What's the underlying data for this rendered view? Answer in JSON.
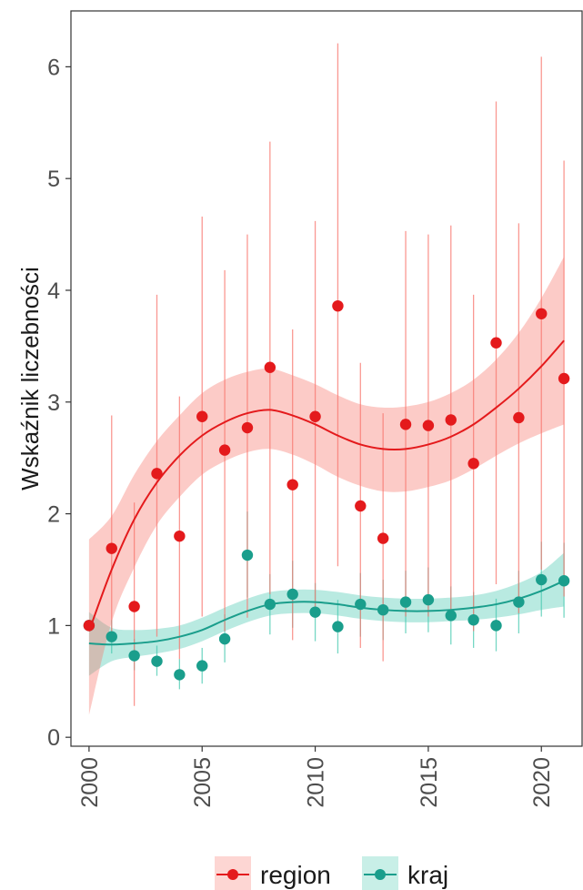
{
  "chart_data": {
    "type": "scatter",
    "title": "",
    "xlabel": "",
    "ylabel": "Wskaźnik liczebności",
    "xlim": [
      1999.2,
      2021.8
    ],
    "ylim": [
      -0.08,
      6.5
    ],
    "x_ticks": [
      2000,
      2005,
      2010,
      2015,
      2020
    ],
    "y_ticks": [
      0,
      1,
      2,
      3,
      4,
      5,
      6
    ],
    "grid": false,
    "legend_position": "bottom",
    "series": [
      {
        "name": "region",
        "color": "#e41a1c",
        "band_color": "#f8766d",
        "points": [
          {
            "x": 2000,
            "y": 1.0,
            "lo": 1.0,
            "hi": 1.0
          },
          {
            "x": 2001,
            "y": 1.69,
            "lo": 0.9,
            "hi": 2.88
          },
          {
            "x": 2002,
            "y": 1.17,
            "lo": 0.28,
            "hi": 2.1
          },
          {
            "x": 2003,
            "y": 2.36,
            "lo": 0.9,
            "hi": 3.96
          },
          {
            "x": 2004,
            "y": 1.8,
            "lo": 0.7,
            "hi": 3.05
          },
          {
            "x": 2005,
            "y": 2.87,
            "lo": 1.08,
            "hi": 4.66
          },
          {
            "x": 2006,
            "y": 2.57,
            "lo": 0.95,
            "hi": 4.18
          },
          {
            "x": 2007,
            "y": 2.77,
            "lo": 1.07,
            "hi": 4.5
          },
          {
            "x": 2008,
            "y": 3.31,
            "lo": 1.28,
            "hi": 5.33
          },
          {
            "x": 2009,
            "y": 2.26,
            "lo": 0.87,
            "hi": 3.65
          },
          {
            "x": 2010,
            "y": 2.87,
            "lo": 1.13,
            "hi": 4.62
          },
          {
            "x": 2011,
            "y": 3.86,
            "lo": 1.53,
            "hi": 6.21
          },
          {
            "x": 2012,
            "y": 2.07,
            "lo": 0.8,
            "hi": 3.35
          },
          {
            "x": 2013,
            "y": 1.78,
            "lo": 0.68,
            "hi": 2.9
          },
          {
            "x": 2014,
            "y": 2.8,
            "lo": 1.08,
            "hi": 4.53
          },
          {
            "x": 2015,
            "y": 2.79,
            "lo": 1.08,
            "hi": 4.5
          },
          {
            "x": 2016,
            "y": 2.84,
            "lo": 1.1,
            "hi": 4.58
          },
          {
            "x": 2017,
            "y": 2.45,
            "lo": 0.95,
            "hi": 3.96
          },
          {
            "x": 2018,
            "y": 3.53,
            "lo": 1.37,
            "hi": 5.69
          },
          {
            "x": 2019,
            "y": 2.86,
            "lo": 1.11,
            "hi": 4.6
          },
          {
            "x": 2020,
            "y": 3.79,
            "lo": 1.5,
            "hi": 6.09
          },
          {
            "x": 2021,
            "y": 3.21,
            "lo": 1.26,
            "hi": 5.16
          }
        ],
        "trend": [
          {
            "x": 2000,
            "y": 0.95,
            "lo": 0.2,
            "hi": 1.77
          },
          {
            "x": 2001,
            "y": 1.5,
            "lo": 1.03,
            "hi": 1.98
          },
          {
            "x": 2002,
            "y": 1.95,
            "lo": 1.52,
            "hi": 2.35
          },
          {
            "x": 2003,
            "y": 2.28,
            "lo": 1.9,
            "hi": 2.65
          },
          {
            "x": 2004,
            "y": 2.52,
            "lo": 2.15,
            "hi": 2.88
          },
          {
            "x": 2005,
            "y": 2.7,
            "lo": 2.35,
            "hi": 3.08
          },
          {
            "x": 2006,
            "y": 2.82,
            "lo": 2.47,
            "hi": 3.2
          },
          {
            "x": 2007,
            "y": 2.9,
            "lo": 2.55,
            "hi": 3.27
          },
          {
            "x": 2008,
            "y": 2.93,
            "lo": 2.58,
            "hi": 3.3
          },
          {
            "x": 2009,
            "y": 2.88,
            "lo": 2.53,
            "hi": 3.24
          },
          {
            "x": 2010,
            "y": 2.8,
            "lo": 2.44,
            "hi": 3.16
          },
          {
            "x": 2011,
            "y": 2.7,
            "lo": 2.33,
            "hi": 3.06
          },
          {
            "x": 2012,
            "y": 2.62,
            "lo": 2.25,
            "hi": 2.98
          },
          {
            "x": 2013,
            "y": 2.58,
            "lo": 2.2,
            "hi": 2.95
          },
          {
            "x": 2014,
            "y": 2.58,
            "lo": 2.2,
            "hi": 2.96
          },
          {
            "x": 2015,
            "y": 2.62,
            "lo": 2.24,
            "hi": 3.0
          },
          {
            "x": 2016,
            "y": 2.69,
            "lo": 2.3,
            "hi": 3.08
          },
          {
            "x": 2017,
            "y": 2.8,
            "lo": 2.4,
            "hi": 3.2
          },
          {
            "x": 2018,
            "y": 2.95,
            "lo": 2.52,
            "hi": 3.38
          },
          {
            "x": 2019,
            "y": 3.12,
            "lo": 2.63,
            "hi": 3.62
          },
          {
            "x": 2020,
            "y": 3.32,
            "lo": 2.72,
            "hi": 3.93
          },
          {
            "x": 2021,
            "y": 3.55,
            "lo": 2.8,
            "hi": 4.3
          }
        ]
      },
      {
        "name": "kraj",
        "color": "#1a9e8c",
        "band_color": "#48c9b0",
        "points": [
          {
            "x": 2000,
            "y": 1.0,
            "lo": 1.0,
            "hi": 1.0
          },
          {
            "x": 2001,
            "y": 0.9,
            "lo": 0.75,
            "hi": 1.05
          },
          {
            "x": 2002,
            "y": 0.73,
            "lo": 0.6,
            "hi": 0.88
          },
          {
            "x": 2003,
            "y": 0.68,
            "lo": 0.55,
            "hi": 0.82
          },
          {
            "x": 2004,
            "y": 0.56,
            "lo": 0.43,
            "hi": 0.7
          },
          {
            "x": 2005,
            "y": 0.64,
            "lo": 0.48,
            "hi": 0.8
          },
          {
            "x": 2006,
            "y": 0.88,
            "lo": 0.67,
            "hi": 1.1
          },
          {
            "x": 2007,
            "y": 1.63,
            "lo": 1.25,
            "hi": 2.02
          },
          {
            "x": 2008,
            "y": 1.19,
            "lo": 0.92,
            "hi": 1.46
          },
          {
            "x": 2009,
            "y": 1.28,
            "lo": 0.98,
            "hi": 1.58
          },
          {
            "x": 2010,
            "y": 1.12,
            "lo": 0.86,
            "hi": 1.38
          },
          {
            "x": 2011,
            "y": 0.99,
            "lo": 0.75,
            "hi": 1.23
          },
          {
            "x": 2012,
            "y": 1.19,
            "lo": 0.9,
            "hi": 1.47
          },
          {
            "x": 2013,
            "y": 1.14,
            "lo": 0.87,
            "hi": 1.41
          },
          {
            "x": 2014,
            "y": 1.21,
            "lo": 0.93,
            "hi": 1.49
          },
          {
            "x": 2015,
            "y": 1.23,
            "lo": 0.94,
            "hi": 1.52
          },
          {
            "x": 2016,
            "y": 1.09,
            "lo": 0.83,
            "hi": 1.35
          },
          {
            "x": 2017,
            "y": 1.05,
            "lo": 0.8,
            "hi": 1.3
          },
          {
            "x": 2018,
            "y": 1.0,
            "lo": 0.77,
            "hi": 1.24
          },
          {
            "x": 2019,
            "y": 1.21,
            "lo": 0.93,
            "hi": 1.49
          },
          {
            "x": 2020,
            "y": 1.41,
            "lo": 1.08,
            "hi": 1.75
          },
          {
            "x": 2021,
            "y": 1.4,
            "lo": 1.07,
            "hi": 1.74
          }
        ],
        "trend": [
          {
            "x": 2000,
            "y": 0.84,
            "lo": 0.55,
            "hi": 1.12
          },
          {
            "x": 2001,
            "y": 0.83,
            "lo": 0.68,
            "hi": 0.98
          },
          {
            "x": 2002,
            "y": 0.84,
            "lo": 0.72,
            "hi": 0.96
          },
          {
            "x": 2003,
            "y": 0.86,
            "lo": 0.75,
            "hi": 0.97
          },
          {
            "x": 2004,
            "y": 0.9,
            "lo": 0.79,
            "hi": 1.0
          },
          {
            "x": 2005,
            "y": 0.96,
            "lo": 0.86,
            "hi": 1.07
          },
          {
            "x": 2006,
            "y": 1.05,
            "lo": 0.95,
            "hi": 1.16
          },
          {
            "x": 2007,
            "y": 1.13,
            "lo": 1.03,
            "hi": 1.24
          },
          {
            "x": 2008,
            "y": 1.19,
            "lo": 1.09,
            "hi": 1.3
          },
          {
            "x": 2009,
            "y": 1.21,
            "lo": 1.11,
            "hi": 1.32
          },
          {
            "x": 2010,
            "y": 1.21,
            "lo": 1.11,
            "hi": 1.32
          },
          {
            "x": 2011,
            "y": 1.19,
            "lo": 1.09,
            "hi": 1.3
          },
          {
            "x": 2012,
            "y": 1.16,
            "lo": 1.06,
            "hi": 1.27
          },
          {
            "x": 2013,
            "y": 1.14,
            "lo": 1.04,
            "hi": 1.25
          },
          {
            "x": 2014,
            "y": 1.13,
            "lo": 1.03,
            "hi": 1.24
          },
          {
            "x": 2015,
            "y": 1.13,
            "lo": 1.03,
            "hi": 1.24
          },
          {
            "x": 2016,
            "y": 1.14,
            "lo": 1.04,
            "hi": 1.25
          },
          {
            "x": 2017,
            "y": 1.16,
            "lo": 1.05,
            "hi": 1.27
          },
          {
            "x": 2018,
            "y": 1.19,
            "lo": 1.07,
            "hi": 1.31
          },
          {
            "x": 2019,
            "y": 1.24,
            "lo": 1.1,
            "hi": 1.38
          },
          {
            "x": 2020,
            "y": 1.31,
            "lo": 1.14,
            "hi": 1.48
          },
          {
            "x": 2021,
            "y": 1.4,
            "lo": 1.17,
            "hi": 1.65
          }
        ]
      }
    ]
  }
}
